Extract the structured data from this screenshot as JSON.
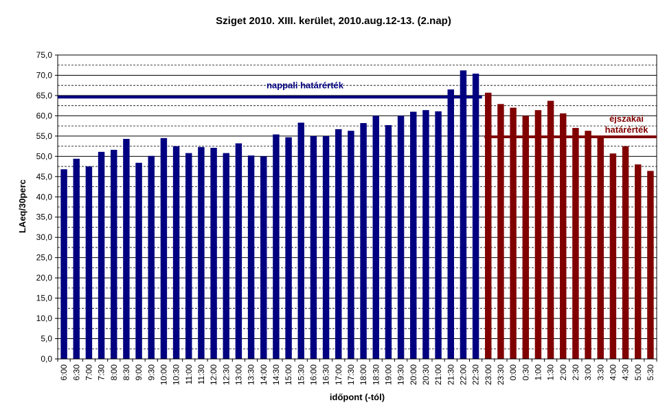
{
  "chart_data": {
    "type": "bar",
    "title": "Sziget 2010.  XIII. kerület, 2010.aug.12-13. (2.nap)",
    "xlabel": "időpont (-tól)",
    "ylabel": "LAeq/30perc",
    "ylim": [
      0,
      75
    ],
    "ytick_step": 5,
    "ytick_labels": [
      "0,0",
      "5,0",
      "10,0",
      "15,0",
      "20,0",
      "25,0",
      "30,0",
      "35,0",
      "40,0",
      "45,0",
      "50,0",
      "55,0",
      "60,0",
      "65,0",
      "70,0",
      "75,0"
    ],
    "categories": [
      "6:00",
      "6:30",
      "7:00",
      "7:30",
      "8:00",
      "8:30",
      "9:00",
      "9:30",
      "10:00",
      "10:30",
      "11:00",
      "11:30",
      "12:00",
      "12:30",
      "13:00",
      "13:30",
      "14:00",
      "14:30",
      "15:00",
      "15:30",
      "16:00",
      "16:30",
      "17:00",
      "17:30",
      "18:00",
      "18:30",
      "19:00",
      "19:30",
      "20:00",
      "20:30",
      "21:00",
      "21:30",
      "22:00",
      "22:30",
      "23:00",
      "23:30",
      "0:00",
      "0:30",
      "1:00",
      "1:30",
      "2:00",
      "2:30",
      "3:00",
      "3:30",
      "4:00",
      "4:30",
      "5:00",
      "5:30"
    ],
    "values": [
      46.8,
      49.4,
      47.5,
      51.1,
      51.6,
      54.3,
      48.4,
      50.1,
      54.5,
      52.5,
      50.8,
      52.3,
      52.1,
      50.8,
      53.2,
      50.2,
      50.0,
      55.4,
      54.7,
      58.3,
      55.0,
      55.0,
      56.7,
      56.3,
      58.2,
      60.0,
      57.7,
      60.0,
      61.0,
      61.4,
      61.1,
      66.5,
      71.2,
      70.4,
      65.7,
      62.9,
      62.0,
      60.0,
      61.4,
      63.7,
      60.6,
      57.0,
      56.3,
      55.0,
      50.7,
      52.5,
      48.0,
      46.4
    ],
    "day_color": "#000080",
    "night_color": "#800000",
    "night_start_index": 34,
    "grid": true,
    "thresholds": [
      {
        "label": "nappali határérték",
        "value": 64.6,
        "color": "#000080",
        "from_index": 0,
        "to_index": 33
      },
      {
        "label_lines": [
          "éjszakai",
          "határérték"
        ],
        "value": 54.8,
        "color": "#800000",
        "from_index": 34,
        "to_index": 47
      }
    ]
  }
}
